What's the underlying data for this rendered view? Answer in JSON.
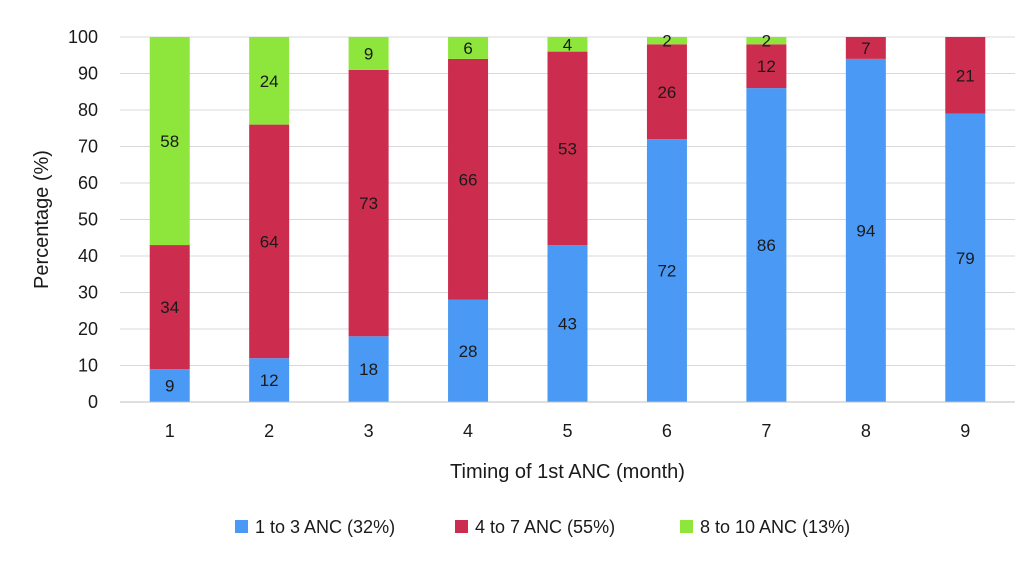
{
  "chart_data": {
    "type": "bar",
    "stacked": true,
    "categories": [
      "1",
      "2",
      "3",
      "4",
      "5",
      "6",
      "7",
      "8",
      "9"
    ],
    "series": [
      {
        "name": "1 to 3 ANC (32%)",
        "color": "#4a9af5",
        "values": [
          9,
          12,
          18,
          28,
          43,
          72,
          86,
          94,
          79
        ],
        "labels": [
          "9",
          "12",
          "18",
          "28",
          "43",
          "72",
          "86",
          "94",
          "79"
        ]
      },
      {
        "name": "4 to 7 ANC (55%)",
        "color": "#cc2d4e",
        "values": [
          34,
          64,
          73,
          66,
          53,
          26,
          12,
          7,
          21
        ],
        "labels": [
          "34",
          "64",
          "73",
          "66",
          "53",
          "26",
          "12",
          "7",
          "21"
        ]
      },
      {
        "name": "8 to 10 ANC (13%)",
        "color": "#8ee63c",
        "values": [
          58,
          24,
          9,
          6,
          4,
          2,
          2,
          0,
          0
        ],
        "labels": [
          "58",
          "24",
          "9",
          "6",
          "4",
          "2",
          "2",
          "",
          ""
        ]
      }
    ],
    "xlabel": "Timing of 1st ANC (month)",
    "ylabel": "Percentage (%)",
    "ylim": [
      0,
      100
    ],
    "yticks": [
      "0",
      "10",
      "20",
      "30",
      "40",
      "50",
      "60",
      "70",
      "80",
      "90",
      "100"
    ],
    "grid": true,
    "legend_position": "bottom"
  }
}
